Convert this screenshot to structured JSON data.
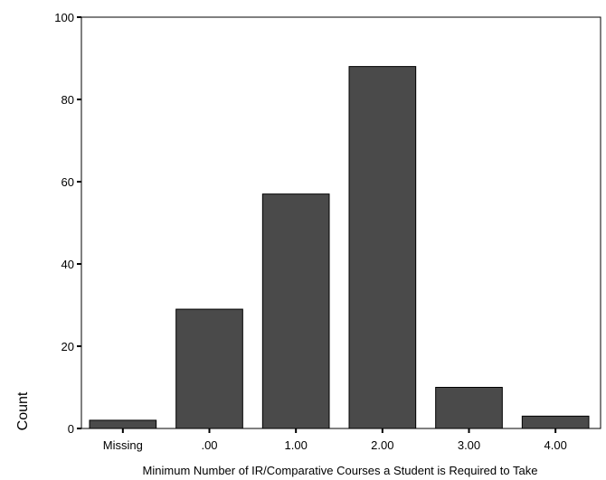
{
  "chart_data": {
    "type": "bar",
    "title": "",
    "xlabel": "Minimum Number of IR/Comparative Courses a Student is Required to Take",
    "ylabel": "Count",
    "categories": [
      "Missing",
      ".00",
      "1.00",
      "2.00",
      "3.00",
      "4.00"
    ],
    "values": [
      2,
      29,
      57,
      88,
      10,
      3
    ],
    "ylim": [
      0,
      100
    ],
    "yticks": [
      0,
      20,
      40,
      60,
      80,
      100
    ],
    "grid": false,
    "legend": "none",
    "colors": {
      "bar_fill": "#4a4a4a",
      "bar_stroke": "#000000",
      "axis": "#000000",
      "background": "#ffffff"
    }
  }
}
